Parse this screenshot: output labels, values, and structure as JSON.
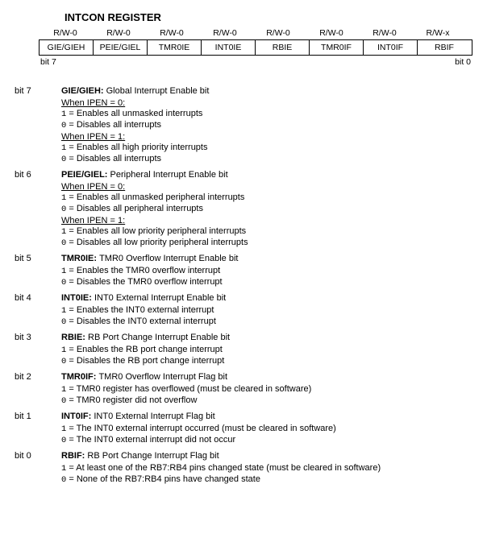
{
  "title": "INTCON REGISTER",
  "rw_row": [
    "R/W-0",
    "R/W-0",
    "R/W-0",
    "R/W-0",
    "R/W-0",
    "R/W-0",
    "R/W-0",
    "R/W-x"
  ],
  "name_row": [
    "GIE/GIEH",
    "PEIE/GIEL",
    "TMR0IE",
    "INT0IE",
    "RBIE",
    "TMR0IF",
    "INT0IF",
    "RBIF"
  ],
  "bit_lo_label": "bit 7",
  "bit_hi_label": "bit 0",
  "bits": [
    {
      "label": "bit 7",
      "name": "GIE/GIEH:",
      "desc": "Global Interrupt Enable bit",
      "groups": [
        {
          "heading": "When IPEN = 0:",
          "headingMono": "0",
          "lines": [
            "1 = Enables all unmasked interrupts",
            "0 = Disables all interrupts"
          ]
        },
        {
          "heading": "When IPEN = 1:",
          "headingMono": "1",
          "lines": [
            "1 = Enables all high priority interrupts",
            "0 = Disables all interrupts"
          ]
        }
      ]
    },
    {
      "label": "bit 6",
      "name": "PEIE/GIEL:",
      "desc": "Peripheral Interrupt Enable bit",
      "groups": [
        {
          "heading": "When IPEN = 0:",
          "headingMono": "0",
          "lines": [
            "1 = Enables all unmasked peripheral interrupts",
            "0 = Disables all peripheral interrupts"
          ]
        },
        {
          "heading": "When IPEN = 1:",
          "headingMono": "1",
          "lines": [
            "1 = Enables all low priority peripheral interrupts",
            "0 = Disables all low priority peripheral interrupts"
          ]
        }
      ]
    },
    {
      "label": "bit 5",
      "name": "TMR0IE:",
      "desc": "TMR0 Overflow Interrupt Enable bit",
      "groups": [
        {
          "heading": "",
          "lines": [
            "1 = Enables the TMR0 overflow interrupt",
            "0 = Disables the TMR0 overflow interrupt"
          ]
        }
      ]
    },
    {
      "label": "bit 4",
      "name": "INT0IE:",
      "desc": "INT0 External Interrupt Enable bit",
      "groups": [
        {
          "heading": "",
          "lines": [
            "1 = Enables the INT0 external interrupt",
            "0 = Disables the INT0 external interrupt"
          ]
        }
      ]
    },
    {
      "label": "bit 3",
      "name": "RBIE:",
      "desc": "RB Port Change Interrupt Enable bit",
      "groups": [
        {
          "heading": "",
          "lines": [
            "1 = Enables the RB port change interrupt",
            "0 = Disables the RB port change interrupt"
          ]
        }
      ]
    },
    {
      "label": "bit 2",
      "name": "TMR0IF:",
      "desc": "TMR0 Overflow Interrupt Flag bit",
      "groups": [
        {
          "heading": "",
          "lines": [
            "1 = TMR0 register has overflowed (must be cleared in software)",
            "0 = TMR0 register did not overflow"
          ]
        }
      ]
    },
    {
      "label": "bit 1",
      "name": "INT0IF:",
      "desc": "INT0 External Interrupt Flag bit",
      "groups": [
        {
          "heading": "",
          "lines": [
            "1 = The INT0 external interrupt occurred (must be cleared in software)",
            "0 = The INT0 external interrupt did not occur"
          ]
        }
      ]
    },
    {
      "label": "bit 0",
      "name": "RBIF:",
      "desc": "RB Port Change Interrupt Flag bit",
      "groups": [
        {
          "heading": "",
          "lines": [
            "1 = At least one of the RB7:RB4 pins changed state (must be cleared in software)",
            "0 = None of the RB7:RB4 pins have changed state"
          ]
        }
      ]
    }
  ]
}
